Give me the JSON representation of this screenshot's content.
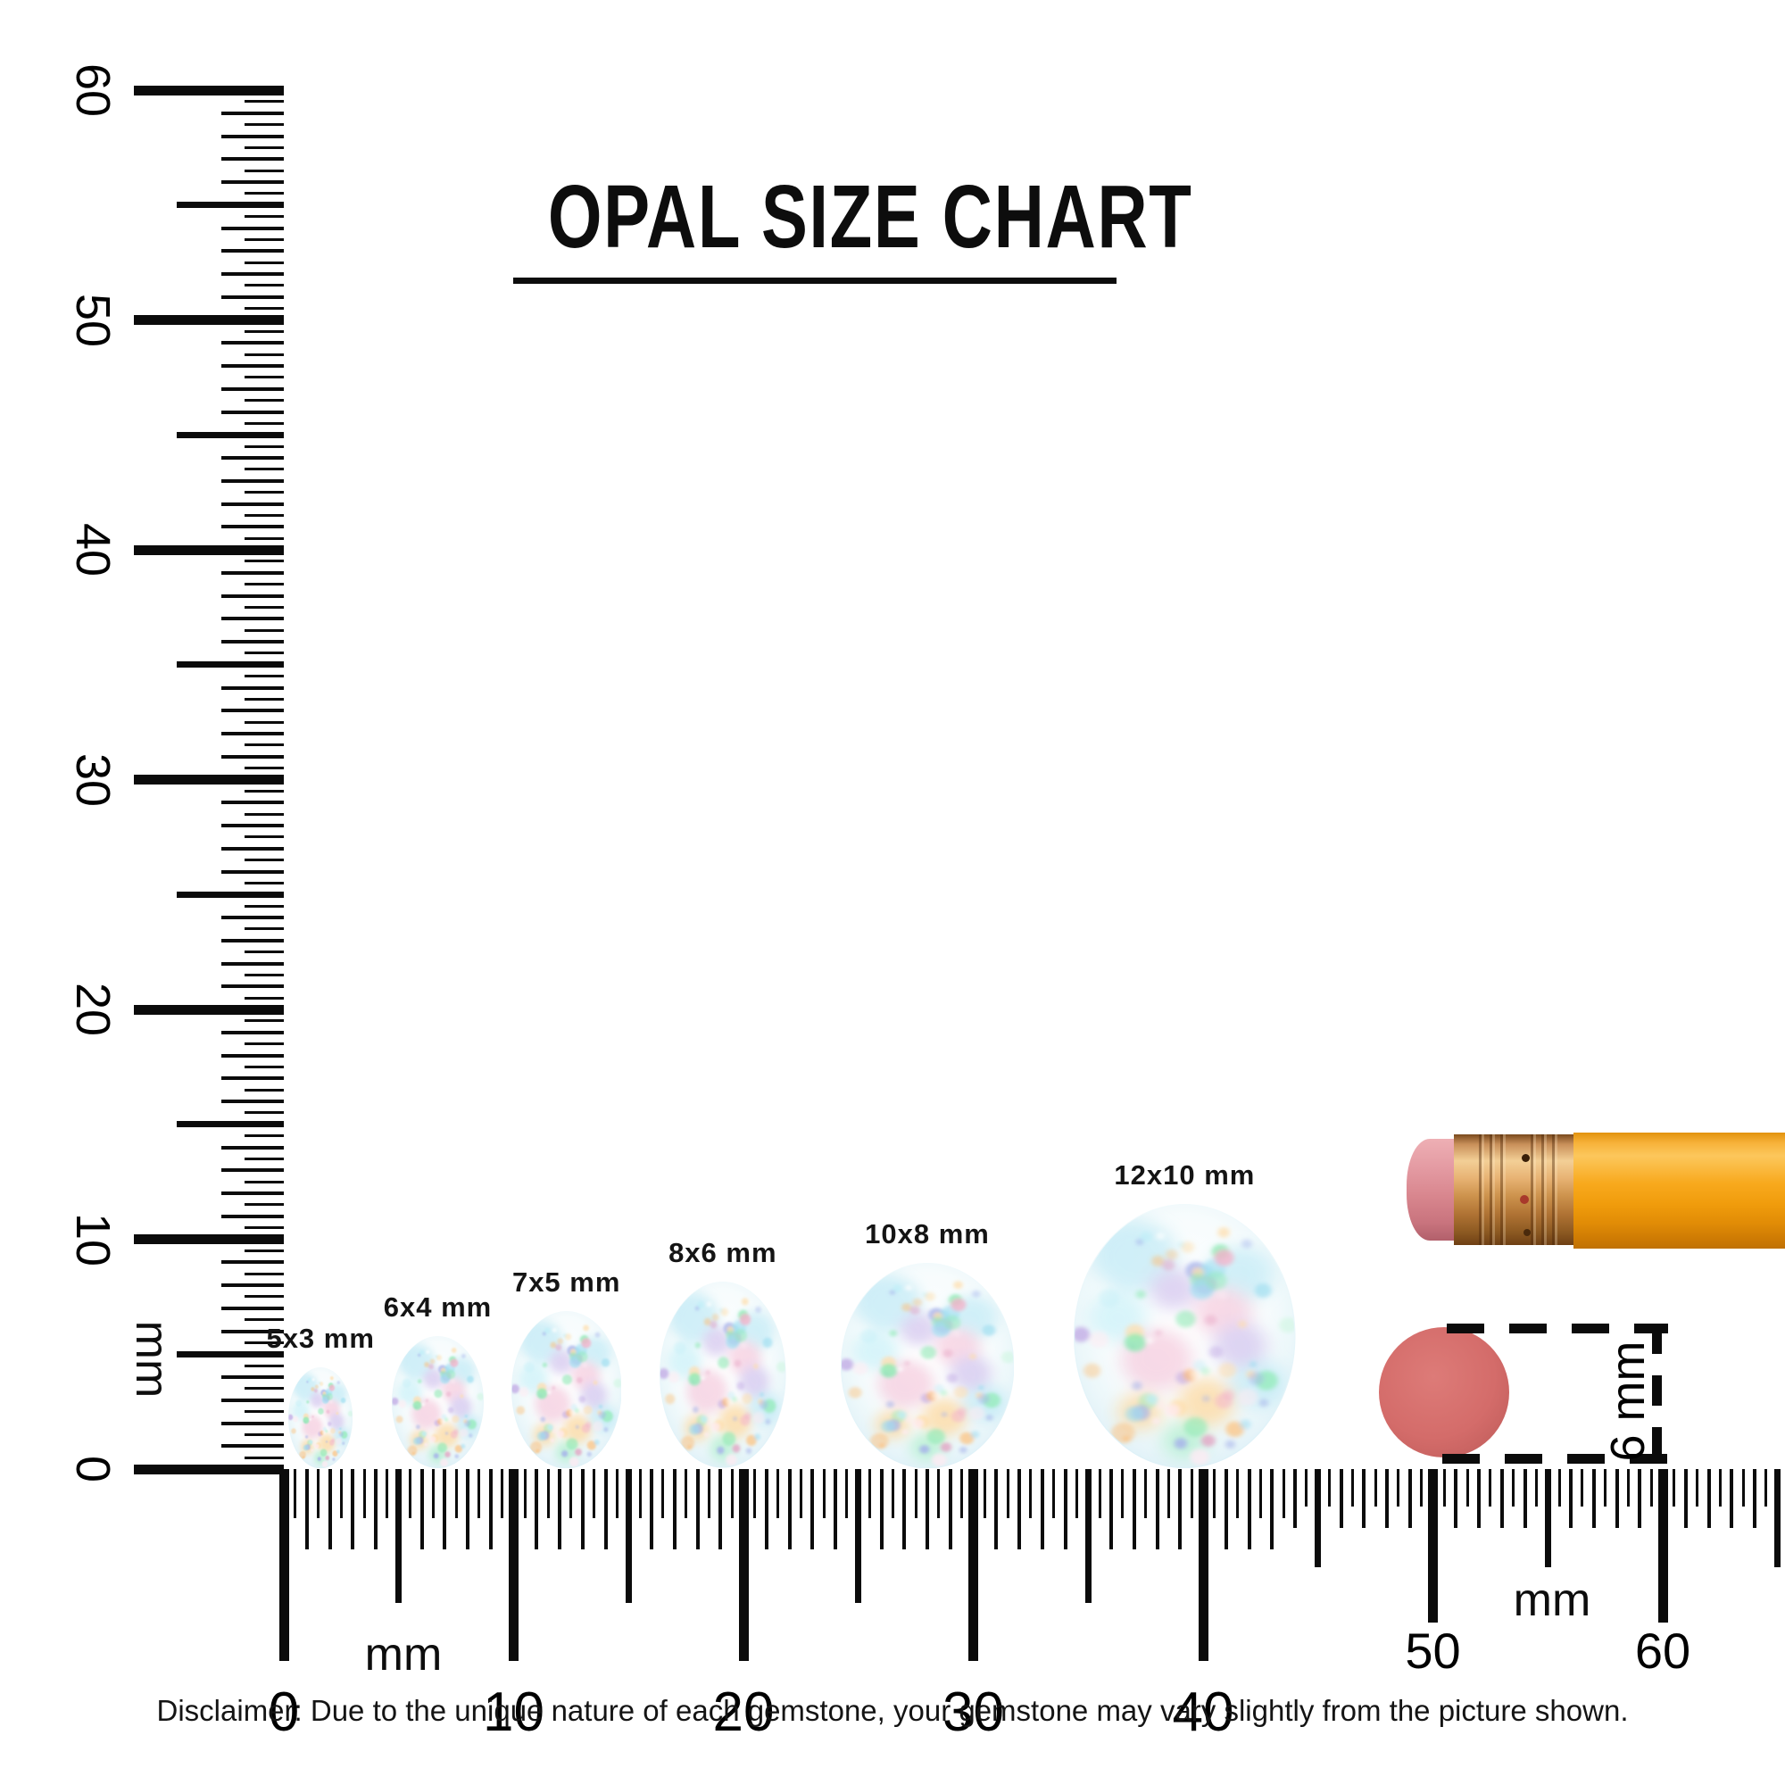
{
  "title": "OPAL SIZE CHART",
  "disclaimer": "Disclaimer: Due to the unique nature of each gemstone, your gemstone may vary slightly from the picture shown.",
  "chart_data": {
    "type": "size-comparison",
    "title": "OPAL SIZE CHART",
    "unit": "mm",
    "vertical_ruler": {
      "min": 0,
      "max": 60,
      "tick_step_mm": 0.5,
      "labels": [
        0,
        10,
        20,
        30,
        40,
        50,
        60
      ],
      "unit_label": "mm"
    },
    "horizontal_ruler": {
      "min": 0,
      "max": 65,
      "tick_step_mm": 0.5,
      "labels": [
        0,
        10,
        20,
        30,
        40,
        50,
        60
      ],
      "unit_labels": [
        "mm",
        "mm"
      ]
    },
    "gems": [
      {
        "label": "5x3 mm",
        "nominal_mm": [
          5,
          3
        ],
        "drawn_h_mm": 4.4,
        "drawn_w_mm": 2.8,
        "center_mm": 1.6
      },
      {
        "label": "6x4 mm",
        "nominal_mm": [
          6,
          4
        ],
        "drawn_h_mm": 5.75,
        "drawn_w_mm": 4.0,
        "center_mm": 6.7
      },
      {
        "label": "7x5 mm",
        "nominal_mm": [
          7,
          5
        ],
        "drawn_h_mm": 6.85,
        "drawn_w_mm": 4.8,
        "center_mm": 12.3
      },
      {
        "label": "8x6 mm",
        "nominal_mm": [
          8,
          6
        ],
        "drawn_h_mm": 8.1,
        "drawn_w_mm": 5.5,
        "center_mm": 19.1
      },
      {
        "label": "10x8 mm",
        "nominal_mm": [
          10,
          8
        ],
        "drawn_h_mm": 8.95,
        "drawn_w_mm": 7.55,
        "center_mm": 28.0
      },
      {
        "label": "12x10 mm",
        "nominal_mm": [
          12,
          10
        ],
        "drawn_h_mm": 11.5,
        "drawn_w_mm": 9.65,
        "center_mm": 39.2
      }
    ],
    "reference_objects": [
      {
        "name": "pencil",
        "colors": {
          "body": "#f5a313",
          "ferrule": "#d9a05b",
          "eraser": "#d98b93"
        }
      },
      {
        "name": "round-eraser",
        "diameter_label": "6 mm",
        "color": "#d16c6a"
      }
    ],
    "opal_palette": [
      "#8fd8ef",
      "#b3ecf7",
      "#ffb057",
      "#ffd9a0",
      "#f2a7c3",
      "#e08ab4",
      "#b79ce0",
      "#9aa8e8",
      "#7ce8a8",
      "#bdf5d2",
      "#ffffff",
      "#ffe9f2"
    ]
  }
}
